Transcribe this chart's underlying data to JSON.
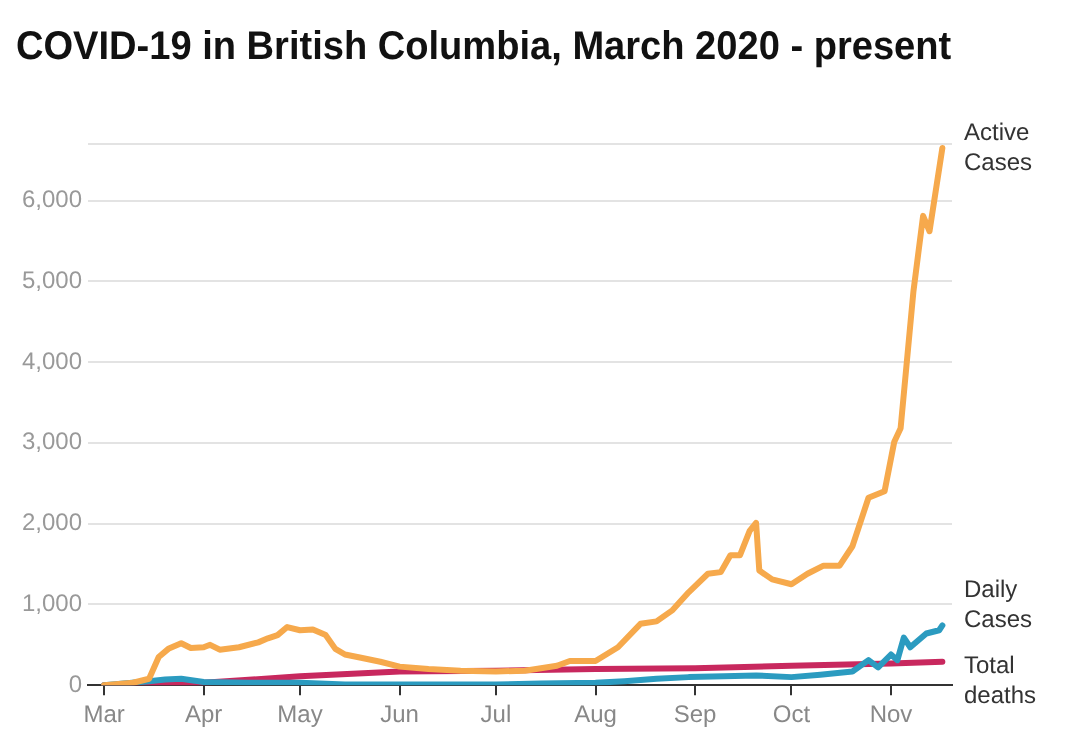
{
  "chart_data": {
    "type": "line",
    "title": "COVID-19 in British Columbia, March 2020 - present",
    "xlim": [
      "2020-02-25",
      "2020-11-20"
    ],
    "xticks": [
      {
        "value": "2020-03-01",
        "label": "Mar"
      },
      {
        "value": "2020-04-01",
        "label": "Apr"
      },
      {
        "value": "2020-05-01",
        "label": "May"
      },
      {
        "value": "2020-06-01",
        "label": "Jun"
      },
      {
        "value": "2020-07-01",
        "label": "Jul"
      },
      {
        "value": "2020-08-01",
        "label": "Aug"
      },
      {
        "value": "2020-09-01",
        "label": "Sep"
      },
      {
        "value": "2020-10-01",
        "label": "Oct"
      },
      {
        "value": "2020-11-01",
        "label": "Nov"
      }
    ],
    "ylim": [
      0,
      6700
    ],
    "yticks": [
      0,
      {
        "value": 1000,
        "label": "1,000"
      },
      {
        "value": 2000,
        "label": "2,000"
      },
      {
        "value": 3000,
        "label": "3,000"
      },
      {
        "value": 4000,
        "label": "4,000"
      },
      {
        "value": 5000,
        "label": "5,000"
      },
      {
        "value": 6000,
        "label": "6,000"
      },
      {
        "value": 6700,
        "label": null
      }
    ],
    "grid": "y",
    "legend": false,
    "marker": "none",
    "line_style": "solid",
    "series": [
      {
        "name": "Active Cases",
        "color": "#f6a94c",
        "x": [
          "2020-03-01",
          "2020-03-10",
          "2020-03-15",
          "2020-03-18",
          "2020-03-21",
          "2020-03-25",
          "2020-03-28",
          "2020-04-01",
          "2020-04-03",
          "2020-04-06",
          "2020-04-12",
          "2020-04-18",
          "2020-04-21",
          "2020-04-24",
          "2020-04-27",
          "2020-05-01",
          "2020-05-05",
          "2020-05-09",
          "2020-05-12",
          "2020-05-15",
          "2020-05-20",
          "2020-05-26",
          "2020-06-01",
          "2020-06-10",
          "2020-06-20",
          "2020-07-01",
          "2020-07-10",
          "2020-07-20",
          "2020-07-24",
          "2020-08-01",
          "2020-08-08",
          "2020-08-15",
          "2020-08-20",
          "2020-08-25",
          "2020-08-30",
          "2020-09-05",
          "2020-09-09",
          "2020-09-12",
          "2020-09-15",
          "2020-09-18",
          "2020-09-20",
          "2020-09-21",
          "2020-09-25",
          "2020-10-01",
          "2020-10-06",
          "2020-10-11",
          "2020-10-16",
          "2020-10-20",
          "2020-10-25",
          "2020-10-30",
          "2020-11-02",
          "2020-11-04",
          "2020-11-08",
          "2020-11-11",
          "2020-11-13",
          "2020-11-17"
        ],
        "values": [
          0,
          30,
          80,
          350,
          450,
          520,
          460,
          470,
          500,
          440,
          470,
          530,
          580,
          620,
          720,
          680,
          690,
          620,
          450,
          380,
          340,
          290,
          230,
          200,
          180,
          170,
          180,
          240,
          300,
          300,
          470,
          760,
          790,
          930,
          1150,
          1380,
          1400,
          1610,
          1610,
          1910,
          2010,
          1420,
          1310,
          1250,
          1380,
          1480,
          1480,
          1720,
          2320,
          2400,
          3010,
          3180,
          4880,
          5810,
          5620,
          6650
        ]
      },
      {
        "name": "Daily Cases",
        "color": "#2b9bc0",
        "x": [
          "2020-03-01",
          "2020-03-15",
          "2020-03-20",
          "2020-03-25",
          "2020-04-01",
          "2020-04-15",
          "2020-05-01",
          "2020-05-15",
          "2020-06-01",
          "2020-07-01",
          "2020-07-15",
          "2020-08-01",
          "2020-08-10",
          "2020-08-20",
          "2020-08-30",
          "2020-09-10",
          "2020-09-20",
          "2020-10-01",
          "2020-10-10",
          "2020-10-20",
          "2020-10-25",
          "2020-10-28",
          "2020-11-01",
          "2020-11-03",
          "2020-11-05",
          "2020-11-07",
          "2020-11-12",
          "2020-11-16",
          "2020-11-17"
        ],
        "values": [
          0,
          50,
          70,
          80,
          40,
          30,
          30,
          10,
          10,
          10,
          20,
          30,
          50,
          80,
          100,
          110,
          120,
          100,
          130,
          170,
          310,
          220,
          380,
          310,
          590,
          470,
          640,
          680,
          740
        ]
      },
      {
        "name": "Total deaths",
        "color": "#c8285e",
        "x": [
          "2020-03-01",
          "2020-04-01",
          "2020-05-01",
          "2020-06-01",
          "2020-07-01",
          "2020-08-01",
          "2020-09-01",
          "2020-10-01",
          "2020-11-01",
          "2020-11-17"
        ],
        "values": [
          0,
          30,
          110,
          170,
          180,
          200,
          210,
          240,
          270,
          290
        ]
      }
    ]
  }
}
